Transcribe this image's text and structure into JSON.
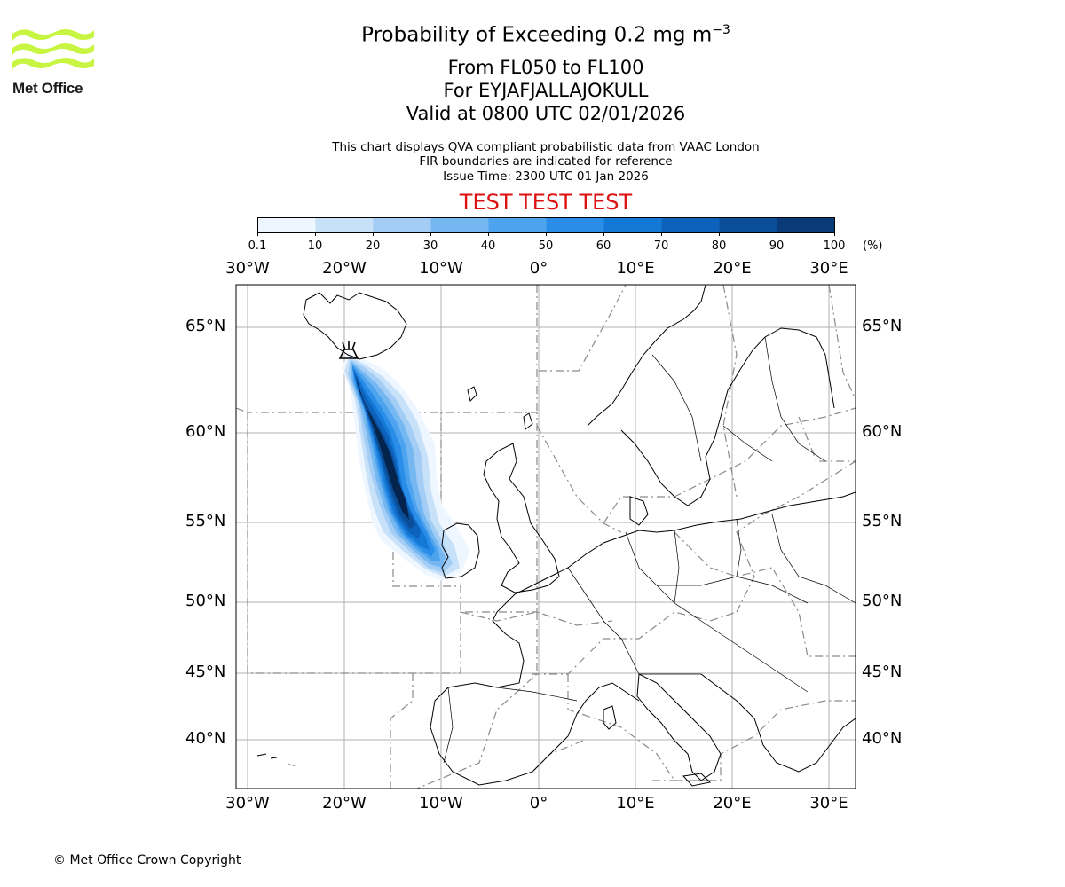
{
  "logo": {
    "text": "Met Office",
    "color": "#c8f542"
  },
  "title": {
    "line1_main": "Probability of Exceeding 0.2 mg m",
    "line1_sup": "−3",
    "line2": "From FL050 to FL100",
    "line3": "For EYJAFJALLAJOKULL",
    "line4": "Valid at 0800 UTC 02/01/2026"
  },
  "subtitle": {
    "line1": "This chart displays QVA compliant probabilistic data from VAAC London",
    "line2": "FIR boundaries are indicated for reference",
    "line3": "Issue Time: 2300 UTC 01 Jan 2026"
  },
  "test_banner": "TEST TEST TEST",
  "colorbar": {
    "ticks": [
      "0.1",
      "10",
      "20",
      "30",
      "40",
      "50",
      "60",
      "70",
      "80",
      "90",
      "100"
    ],
    "units": "(%)",
    "colors": [
      "#eef6ff",
      "#c6e1f8",
      "#a3cdf5",
      "#74b7f1",
      "#4da3ee",
      "#2a8de8",
      "#1478d6",
      "#0d62bb",
      "#0b4e98",
      "#083b78",
      "#04234d"
    ]
  },
  "map": {
    "lon_ticks": [
      "30°W",
      "20°W",
      "10°W",
      "0°",
      "10°E",
      "20°E",
      "30°E"
    ],
    "lat_ticks": [
      "65°N",
      "60°N",
      "55°N",
      "50°N",
      "45°N",
      "40°N"
    ],
    "volcano_icon": "volcano-icon"
  },
  "footer": {
    "copyright": "© Met Office Crown Copyright"
  }
}
